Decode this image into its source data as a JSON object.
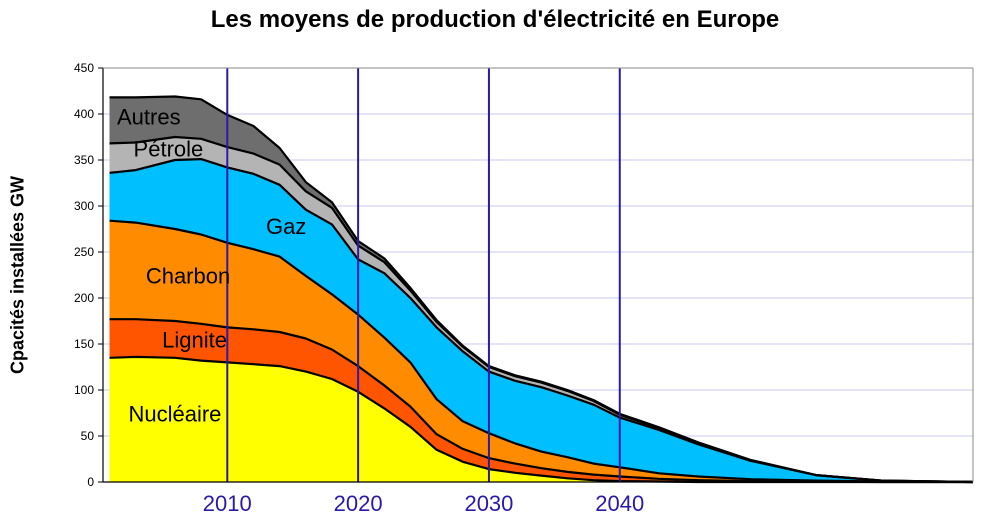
{
  "chart_data": {
    "type": "area",
    "stacked": true,
    "title": "Les moyens de production d'électricité en Europe",
    "ylabel": "Cpacités installées GW",
    "xlabel": "",
    "xlim": [
      2000.5,
      2067
    ],
    "ylim": [
      0,
      450
    ],
    "yticks": [
      0,
      50,
      100,
      150,
      200,
      250,
      300,
      350,
      400,
      450
    ],
    "xticks": [
      2010,
      2020,
      2030,
      2040
    ],
    "grid": "horizontal",
    "x": [
      2001,
      2003,
      2006,
      2008,
      2010,
      2012,
      2014,
      2016,
      2018,
      2020,
      2022,
      2024,
      2026,
      2028,
      2030,
      2032,
      2034,
      2036,
      2038,
      2040,
      2043,
      2046,
      2050,
      2055,
      2060,
      2067
    ],
    "series": [
      {
        "name": "Nucléaire",
        "color": "#ffff00",
        "values": [
          135,
          136,
          135,
          132,
          130,
          128,
          126,
          120,
          112,
          98,
          80,
          60,
          35,
          22,
          14,
          10,
          7,
          4,
          2,
          1,
          0.5,
          0,
          0,
          0,
          0,
          0
        ]
      },
      {
        "name": "Lignite",
        "color": "#ff5500",
        "values": [
          42,
          41,
          40,
          40,
          38,
          38,
          37,
          36,
          32,
          28,
          25,
          22,
          17,
          14,
          12,
          10,
          8,
          7,
          6,
          5,
          3,
          2,
          1,
          0.5,
          0,
          0
        ]
      },
      {
        "name": "Charbon",
        "color": "#ff8c00",
        "values": [
          107,
          105,
          100,
          97,
          92,
          87,
          82,
          68,
          60,
          56,
          52,
          48,
          38,
          30,
          27,
          22,
          18,
          16,
          12,
          10,
          6,
          4,
          2,
          1,
          0.5,
          0
        ]
      },
      {
        "name": "Gaz",
        "color": "#00bfff",
        "values": [
          52,
          57,
          75,
          82,
          82,
          82,
          78,
          72,
          76,
          60,
          70,
          70,
          78,
          76,
          67,
          68,
          70,
          67,
          64,
          54,
          47,
          35,
          20,
          6,
          1,
          0
        ]
      },
      {
        "name": "Pétrole",
        "color": "#b4b4b4",
        "values": [
          32,
          30,
          25,
          22,
          22,
          22,
          22,
          20,
          18,
          15,
          12,
          8,
          6,
          5,
          5,
          5,
          5,
          5,
          4,
          3,
          2,
          1.5,
          0.5,
          0,
          0,
          0
        ]
      },
      {
        "name": "Autres",
        "color": "#6e6e6e",
        "values": [
          50,
          49,
          44,
          43,
          35,
          30,
          18,
          10,
          6,
          5,
          4,
          3,
          2,
          1,
          1,
          1,
          1,
          1,
          1,
          1,
          1,
          0.5,
          0.5,
          0,
          0,
          0
        ]
      }
    ],
    "vlines": [
      2010,
      2020,
      2030,
      2040
    ],
    "vline_color": "#2a1aa8",
    "grid_color": "#c9c9ee"
  }
}
